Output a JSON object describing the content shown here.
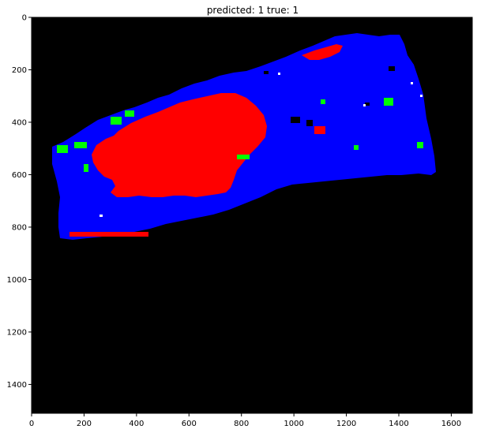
{
  "figure": {
    "title": "predicted: 1  true: 1",
    "x_ticks": [
      "0",
      "200",
      "400",
      "600",
      "800",
      "1000",
      "1200",
      "1400",
      "1600"
    ],
    "y_ticks": [
      "0",
      "200",
      "400",
      "600",
      "800",
      "1000",
      "1200",
      "1400"
    ],
    "x_range": [
      0,
      1680
    ],
    "y_range": [
      0,
      1510
    ],
    "colors": {
      "background": "#000000",
      "tissue": "#0000ff",
      "region_red": "#ff0000",
      "region_green": "#00ff00",
      "speck_white": "#ffffff"
    }
  }
}
